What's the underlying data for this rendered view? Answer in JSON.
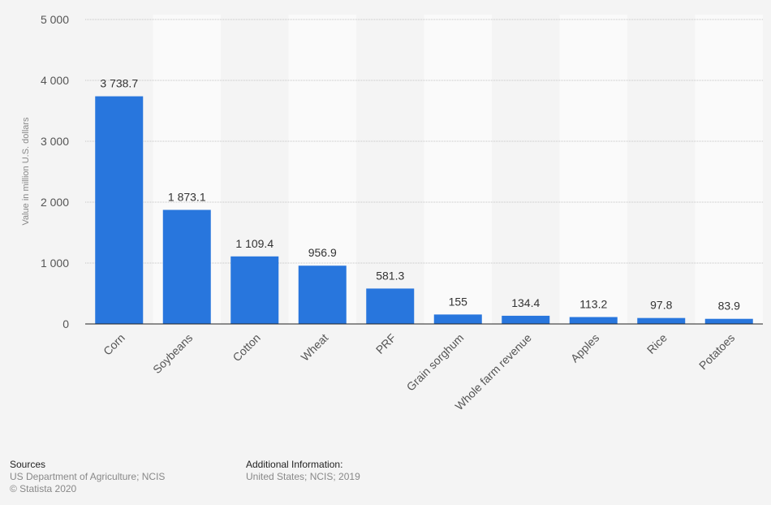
{
  "chart_data": {
    "type": "bar",
    "title": "",
    "xlabel": "",
    "ylabel": "Value in million U.S. dollars",
    "ylim": [
      0,
      5000
    ],
    "yticks": [
      0,
      1000,
      2000,
      3000,
      4000,
      5000
    ],
    "ytick_labels": [
      "0",
      "1 000",
      "2 000",
      "3 000",
      "4 000",
      "5 000"
    ],
    "categories": [
      "Corn",
      "Soybeans",
      "Cotton",
      "Wheat",
      "PRF",
      "Grain sorghum",
      "Whole farm revenue",
      "Apples",
      "Rice",
      "Potatoes"
    ],
    "values": [
      3738.7,
      1873.1,
      1109.4,
      956.9,
      581.3,
      155,
      134.4,
      113.2,
      97.8,
      83.9
    ],
    "value_labels": [
      "3 738.7",
      "1 873.1",
      "1 109.4",
      "956.9",
      "581.3",
      "155",
      "134.4",
      "113.2",
      "97.8",
      "83.9"
    ],
    "bar_color": "#2876dd",
    "grid": true
  },
  "footer": {
    "sources_title": "Sources",
    "sources_text": "US Department of Agriculture; NCIS",
    "copyright": "© Statista 2020",
    "additional_title": "Additional Information:",
    "additional_text": "United States; NCIS; 2019"
  }
}
